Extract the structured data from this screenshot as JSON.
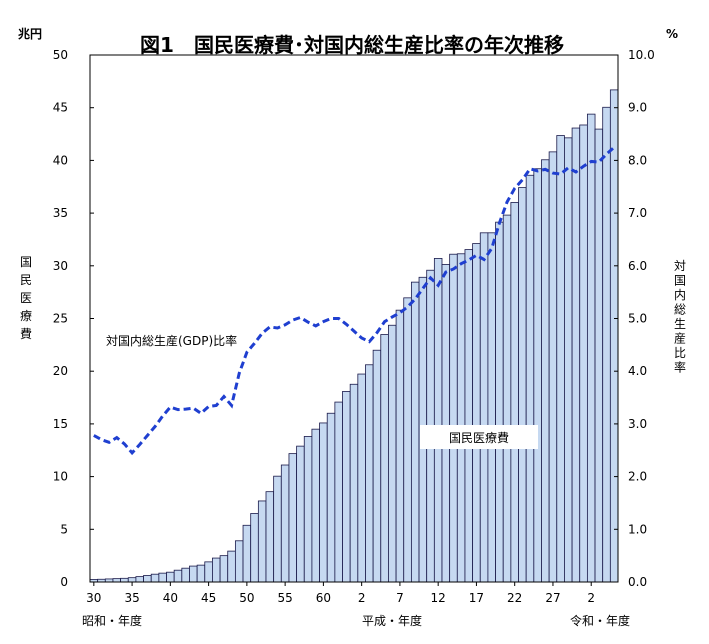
{
  "chart_data": {
    "type": "bar",
    "title": "図1　国民医療費･対国内総生産比率の年次推移",
    "left_unit": "兆円",
    "right_unit": "%",
    "left_axis_label": "国民医療費",
    "right_axis_label": "対国内総生産比率",
    "left_ylim": [
      0,
      50
    ],
    "left_ticks": [
      "0",
      "5",
      "10",
      "15",
      "20",
      "25",
      "30",
      "35",
      "40",
      "45",
      "50"
    ],
    "right_ylim": [
      0,
      10
    ],
    "right_ticks": [
      "0.0",
      "1.0",
      "2.0",
      "3.0",
      "4.0",
      "5.0",
      "6.0",
      "7.0",
      "8.0",
      "9.0",
      "10.0"
    ],
    "x_tick_labels": [
      "30",
      "35",
      "40",
      "45",
      "50",
      "55",
      "60",
      "2",
      "7",
      "12",
      "17",
      "22",
      "27",
      "2"
    ],
    "era_labels": [
      "昭和・年度",
      "平成・年度",
      "令和・年度"
    ],
    "grid": false,
    "bar_color": "#c6d9f1",
    "line_color": "#1f3fd0",
    "series": [
      {
        "name": "国民医療費",
        "type": "bar",
        "axis": "left",
        "values": [
          0.24,
          0.26,
          0.29,
          0.32,
          0.35,
          0.41,
          0.51,
          0.62,
          0.74,
          0.84,
          0.93,
          1.12,
          1.31,
          1.51,
          1.6,
          1.91,
          2.27,
          2.5,
          2.93,
          3.91,
          5.38,
          6.5,
          7.69,
          8.57,
          10.04,
          11.1,
          12.18,
          12.89,
          13.81,
          14.5,
          15.09,
          16.01,
          17.07,
          18.08,
          18.76,
          19.73,
          20.61,
          21.99,
          23.48,
          24.36,
          25.79,
          26.96,
          28.45,
          28.91,
          29.58,
          30.7,
          30.13,
          31.1,
          31.14,
          31.54,
          32.11,
          33.13,
          33.13,
          34.14,
          34.81,
          36.01,
          37.42,
          38.59,
          39.21,
          40.06,
          40.81,
          42.36,
          42.14,
          43.07,
          43.36,
          44.39,
          42.97,
          45.04,
          46.69
        ]
      },
      {
        "name": "対国内総生産(GDP)比率",
        "type": "line",
        "axis": "right",
        "values": [
          2.78,
          2.7,
          2.65,
          2.74,
          2.62,
          2.45,
          2.61,
          2.78,
          2.95,
          3.15,
          3.32,
          3.27,
          3.28,
          3.3,
          3.2,
          3.33,
          3.35,
          3.52,
          3.35,
          3.96,
          4.36,
          4.53,
          4.72,
          4.84,
          4.82,
          4.88,
          4.97,
          5.02,
          4.93,
          4.86,
          4.94,
          5.0,
          5.0,
          4.89,
          4.76,
          4.63,
          4.56,
          4.73,
          4.94,
          5.03,
          5.11,
          5.22,
          5.37,
          5.57,
          5.77,
          5.63,
          5.88,
          5.94,
          6.04,
          6.11,
          6.2,
          6.12,
          6.33,
          6.81,
          7.21,
          7.47,
          7.63,
          7.84,
          7.8,
          7.83,
          7.76,
          7.74,
          7.86,
          7.78,
          7.89,
          7.98,
          7.97,
          8.12,
          8.25
        ]
      }
    ],
    "annotations": [
      "対国内総生産(GDP)比率",
      "国民医療費"
    ]
  }
}
